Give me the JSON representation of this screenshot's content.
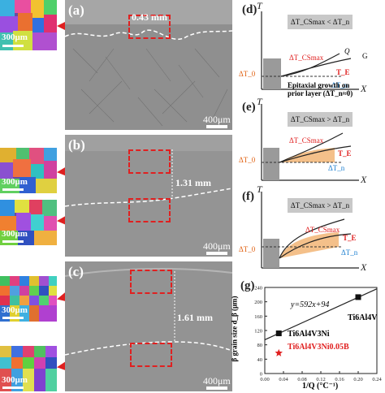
{
  "panels": {
    "a": {
      "label": "(a)",
      "measure": "0.43 mm",
      "scale": "400μm"
    },
    "b": {
      "label": "(b)",
      "measure": "1.31 mm",
      "scale": "400μm"
    },
    "c": {
      "label": "(c)",
      "measure": "1.61 mm",
      "scale": "400μm"
    }
  },
  "ebsd_scale": "300μm",
  "schematics": {
    "d": {
      "label": "(d)",
      "condition": "ΔT_CSmax < ΔT_n",
      "t_axis": "T",
      "x_axis": "X",
      "q": "Q",
      "g": "G",
      "tcsmax": "ΔT_CSmax",
      "te": "T_E",
      "tn": "ΔT_n",
      "t0": "ΔT_0",
      "note_line1": "Epitaxial growth on",
      "note_line2": "prior layer (ΔT_n≈0)"
    },
    "e": {
      "label": "(e)",
      "condition": "ΔT_CSmax > ΔT_n",
      "t_axis": "T",
      "x_axis": "X",
      "tcsmax": "ΔT_CSmax",
      "te": "T_E",
      "tn": "ΔT_n",
      "t0": "ΔT_0"
    },
    "f": {
      "label": "(f)",
      "condition": "ΔT_CSmax > ΔT_n",
      "t_axis": "T",
      "x_axis": "X",
      "tcsmax": "ΔT_CSmax",
      "te": "T_E",
      "tn": "ΔT_n",
      "t0": "ΔT_0"
    }
  },
  "chart": {
    "label": "(g)",
    "equation": "y=592x+94",
    "ylabel": "β grain size d_β (μm)",
    "xlabel": "1/Q (°C⁻¹)",
    "annotations": [
      "Ti6Al4V",
      "Ti6Al4V3Ni",
      "Ti6Al4V3Ni0.05B"
    ]
  },
  "chart_data": {
    "type": "scatter",
    "x": [
      0.03,
      0.2,
      0.03
    ],
    "y": [
      112,
      213,
      57
    ],
    "series": [
      {
        "name": "Ti6Al4V",
        "x": [
          0.2
        ],
        "y": [
          213
        ],
        "marker": "square",
        "color": "#111111"
      },
      {
        "name": "Ti6Al4V3Ni",
        "x": [
          0.03
        ],
        "y": [
          112
        ],
        "marker": "square",
        "color": "#111111"
      },
      {
        "name": "Ti6Al4V3Ni0.05B",
        "x": [
          0.03
        ],
        "y": [
          57
        ],
        "marker": "star",
        "color": "#e02020"
      }
    ],
    "fit": {
      "slope": 592,
      "intercept": 94,
      "x": [
        0.0,
        0.24
      ]
    },
    "xlabel": "1/Q (°C⁻¹)",
    "ylabel": "β grain size d_β (μm)",
    "xlim": [
      0.0,
      0.24
    ],
    "ylim": [
      0,
      240
    ],
    "xticks": [
      "0.00",
      "0.04",
      "0.08",
      "0.12",
      "0.16",
      "0.20",
      "0.24"
    ],
    "yticks": [
      "0",
      "40",
      "80",
      "120",
      "160",
      "200",
      "240"
    ],
    "grid": false
  }
}
